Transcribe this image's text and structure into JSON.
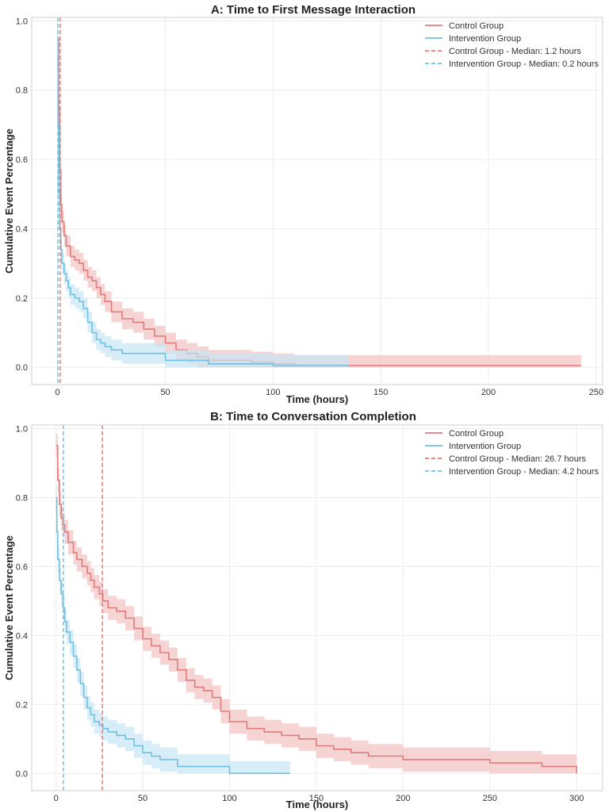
{
  "chart_data": [
    {
      "type": "line",
      "step": true,
      "title": "A: Time to First Message Interaction",
      "xlabel": "Time (hours)",
      "ylabel": "Cumulative Event Percentage",
      "xlim": [
        -12,
        253
      ],
      "ylim": [
        -0.05,
        1.01
      ],
      "xticks": [
        0,
        50,
        100,
        150,
        200,
        250
      ],
      "yticks": [
        0.0,
        0.2,
        0.4,
        0.6,
        0.8,
        1.0
      ],
      "grid": true,
      "legend_position": "top-right",
      "series": [
        {
          "name": "Control Group",
          "color": "#e07b7b",
          "ci_color": "#f4c2c2",
          "x": [
            0,
            0.5,
            1,
            1.5,
            2,
            3,
            4,
            6,
            8,
            10,
            12,
            14,
            16,
            18,
            20,
            22,
            25,
            30,
            35,
            40,
            45,
            50,
            55,
            60,
            65,
            70,
            75,
            80,
            90,
            100,
            110,
            120,
            135,
            150,
            200,
            243
          ],
          "y": [
            0.95,
            0.75,
            0.57,
            0.47,
            0.42,
            0.38,
            0.35,
            0.32,
            0.31,
            0.3,
            0.28,
            0.26,
            0.25,
            0.23,
            0.21,
            0.19,
            0.16,
            0.14,
            0.13,
            0.11,
            0.09,
            0.07,
            0.05,
            0.04,
            0.03,
            0.02,
            0.02,
            0.02,
            0.015,
            0.01,
            0.005,
            0.005,
            0.005,
            0.005,
            0.005,
            0.005
          ],
          "ci": 0.03
        },
        {
          "name": "Intervention Group",
          "color": "#6fc1e0",
          "ci_color": "#c6e6f4",
          "x": [
            0,
            0.3,
            0.6,
            1,
            1.5,
            2,
            3,
            4,
            5,
            6,
            8,
            10,
            12,
            14,
            16,
            18,
            20,
            22,
            25,
            30,
            35,
            40,
            50,
            60,
            70,
            80,
            90,
            100,
            110,
            120,
            135
          ],
          "y": [
            0.95,
            0.7,
            0.5,
            0.4,
            0.34,
            0.3,
            0.27,
            0.25,
            0.23,
            0.21,
            0.2,
            0.19,
            0.17,
            0.13,
            0.1,
            0.08,
            0.07,
            0.06,
            0.05,
            0.04,
            0.04,
            0.04,
            0.02,
            0.02,
            0.01,
            0.01,
            0.01,
            0.005,
            0.005,
            0.005,
            0.005
          ],
          "ci": 0.03
        }
      ],
      "medians": [
        {
          "name": "Control Group - Median: 1.2 hours",
          "x": 1.2,
          "color": "#e07b7b"
        },
        {
          "name": "Intervention Group - Median: 0.2 hours",
          "x": 0.2,
          "color": "#6fc1e0"
        }
      ]
    },
    {
      "type": "line",
      "step": true,
      "title": "B: Time to Conversation Completion",
      "xlabel": "Time (hours)",
      "ylabel": "Cumulative Event Percentage",
      "xlim": [
        -14,
        315
      ],
      "ylim": [
        -0.05,
        1.01
      ],
      "xticks": [
        0,
        50,
        100,
        150,
        200,
        250,
        300
      ],
      "yticks": [
        0.0,
        0.2,
        0.4,
        0.6,
        0.8,
        1.0
      ],
      "grid": true,
      "legend_position": "top-right",
      "series": [
        {
          "name": "Control Group",
          "color": "#e07b7b",
          "ci_color": "#f4c2c2",
          "x": [
            0,
            1,
            2,
            3,
            4,
            5,
            7,
            10,
            12,
            15,
            18,
            20,
            22,
            25,
            27,
            30,
            35,
            40,
            45,
            50,
            55,
            60,
            65,
            70,
            75,
            80,
            85,
            90,
            95,
            100,
            110,
            120,
            130,
            140,
            150,
            160,
            170,
            180,
            200,
            220,
            250,
            270,
            280,
            290,
            300
          ],
          "y": [
            0.95,
            0.85,
            0.78,
            0.74,
            0.72,
            0.7,
            0.67,
            0.64,
            0.62,
            0.6,
            0.58,
            0.56,
            0.54,
            0.52,
            0.5,
            0.48,
            0.47,
            0.45,
            0.42,
            0.39,
            0.37,
            0.35,
            0.33,
            0.3,
            0.27,
            0.25,
            0.24,
            0.22,
            0.18,
            0.15,
            0.13,
            0.12,
            0.11,
            0.1,
            0.08,
            0.07,
            0.06,
            0.05,
            0.04,
            0.04,
            0.03,
            0.03,
            0.02,
            0.02,
            0.0
          ],
          "ci": 0.035
        },
        {
          "name": "Intervention Group",
          "color": "#6fc1e0",
          "ci_color": "#c6e6f4",
          "x": [
            0,
            0.5,
            1,
            2,
            3,
            4,
            5,
            6,
            8,
            10,
            12,
            14,
            16,
            18,
            20,
            22,
            25,
            27,
            30,
            35,
            40,
            45,
            50,
            55,
            60,
            65,
            70,
            80,
            90,
            100,
            110,
            120,
            135
          ],
          "y": [
            0.8,
            0.7,
            0.62,
            0.56,
            0.52,
            0.48,
            0.44,
            0.41,
            0.38,
            0.34,
            0.3,
            0.26,
            0.22,
            0.19,
            0.17,
            0.15,
            0.14,
            0.13,
            0.12,
            0.11,
            0.1,
            0.08,
            0.06,
            0.05,
            0.04,
            0.04,
            0.02,
            0.02,
            0.02,
            0.0,
            0.0,
            0.0,
            0.0
          ],
          "ci": 0.035
        }
      ],
      "medians": [
        {
          "name": "Control Group - Median: 26.7 hours",
          "x": 26.7,
          "color": "#e07b7b"
        },
        {
          "name": "Intervention Group - Median: 4.2 hours",
          "x": 4.2,
          "color": "#6fc1e0"
        }
      ]
    }
  ]
}
